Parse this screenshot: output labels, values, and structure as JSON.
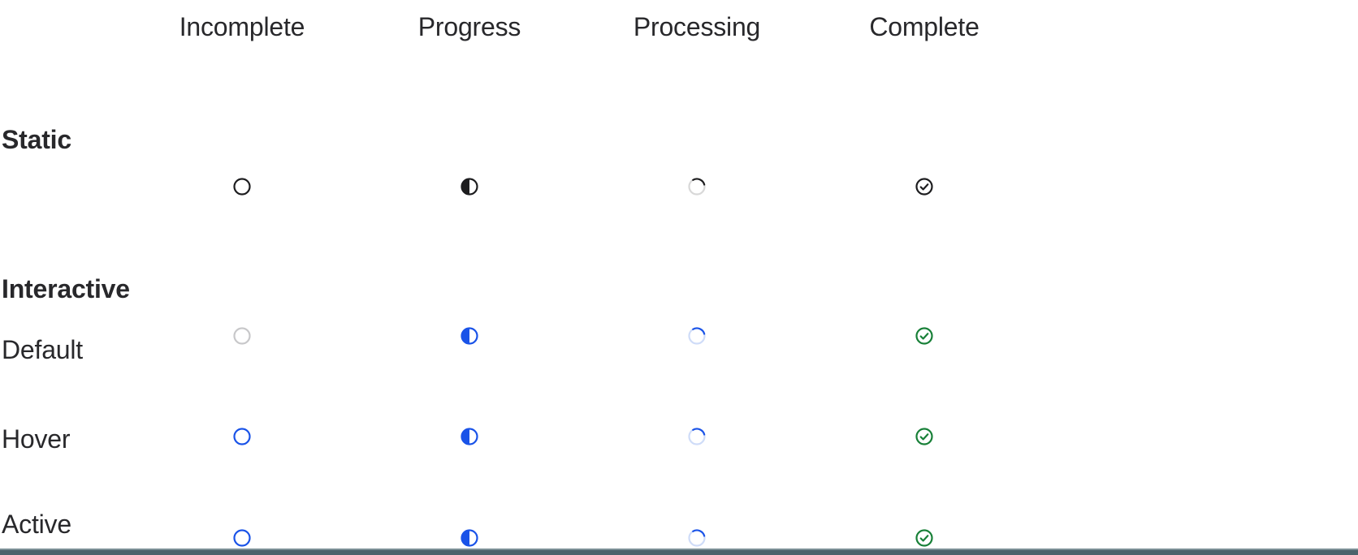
{
  "palette": {
    "text": "#28282b",
    "background": "#ffffff",
    "icon_black": "#1d1d1f",
    "gray_ring": "#c8c8ca",
    "gray_ring_light": "#d8d8d8",
    "blue": "#1a53e8",
    "blue_pale": "#cfdcf8",
    "green": "#188038",
    "bottom_bar": "#4b636b",
    "bottom_bar_edge": "#7c9096"
  },
  "table": {
    "columns": [
      "Incomplete",
      "Progress",
      "Processing",
      "Complete"
    ],
    "sections": [
      {
        "label": "Static",
        "rows": [
          {
            "label": "",
            "icons": [
              {
                "type": "incomplete",
                "ring": "icon_black"
              },
              {
                "type": "progress",
                "color": "icon_black"
              },
              {
                "type": "processing",
                "ring": "gray_ring_light",
                "arc": "icon_black"
              },
              {
                "type": "complete",
                "color": "icon_black"
              }
            ]
          }
        ]
      },
      {
        "label": "Interactive",
        "rows": [
          {
            "label": "Default",
            "icons": [
              {
                "type": "incomplete",
                "ring": "gray_ring"
              },
              {
                "type": "progress",
                "color": "blue"
              },
              {
                "type": "processing",
                "ring": "blue_pale",
                "arc": "blue"
              },
              {
                "type": "complete",
                "color": "green"
              }
            ]
          },
          {
            "label": "Hover",
            "icons": [
              {
                "type": "incomplete",
                "ring": "blue"
              },
              {
                "type": "progress",
                "color": "blue"
              },
              {
                "type": "processing",
                "ring": "blue_pale",
                "arc": "blue"
              },
              {
                "type": "complete",
                "color": "green"
              }
            ]
          },
          {
            "label": "Active",
            "icons": [
              {
                "type": "incomplete",
                "ring": "blue"
              },
              {
                "type": "progress",
                "color": "blue"
              },
              {
                "type": "processing",
                "ring": "blue_pale",
                "arc": "blue"
              },
              {
                "type": "complete",
                "color": "green"
              }
            ]
          }
        ]
      }
    ]
  }
}
